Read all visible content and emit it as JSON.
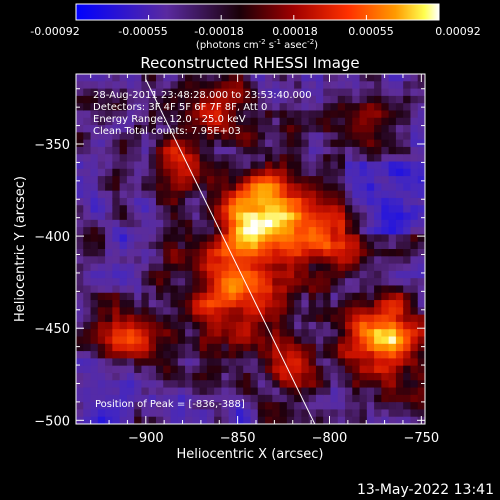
{
  "colorbar": {
    "ticks": [
      "-0.00092",
      "-0.00055",
      "-0.00018",
      "0.00018",
      "0.00055",
      "0.00092"
    ],
    "units_prefix": "(photons cm",
    "units_exp1": "-2",
    "units_mid": " s",
    "units_exp2": "-1",
    "units_mid2": " asec",
    "units_exp3": "-2",
    "units_suffix": ")"
  },
  "title": "Reconstructed RHESSI Image",
  "info": {
    "line1": "28-Aug-2011 23:48:28.000 to 23:53:40.000",
    "line2": "Detectors: 3F 4F 5F 6F 7F 8F, Att 0",
    "line3": "Energy Range: 12.0 - 25.0 keV",
    "line4": "Clean    Total counts: 7.95E+03"
  },
  "peak_label": "Position of Peak = [-836,-388]",
  "footer_timestamp": "13-May-2022 13:41",
  "chart_data": {
    "type": "heatmap",
    "title": "Reconstructed RHESSI Image",
    "xlabel": "Heliocentric X (arcsec)",
    "ylabel": "Heliocentric Y (arcsec)",
    "xlim": [
      -938,
      -748
    ],
    "ylim": [
      -502,
      -312
    ],
    "xticks": [
      -900,
      -850,
      -800,
      -750
    ],
    "yticks": [
      -350,
      -400,
      -450,
      -500
    ],
    "colormap": [
      "#0000ff",
      "#5a2aa0",
      "#2a0010",
      "#a00000",
      "#ff3000",
      "#ff9000",
      "#ffff50",
      "#ffffff"
    ],
    "colorbar_range": [
      -0.00092,
      0.00092
    ],
    "peak_position": [
      -836,
      -388
    ],
    "grid_size": [
      48,
      48
    ],
    "limb_line": {
      "x": [
        -900,
        -808
      ],
      "y": [
        -315,
        -502
      ]
    }
  }
}
